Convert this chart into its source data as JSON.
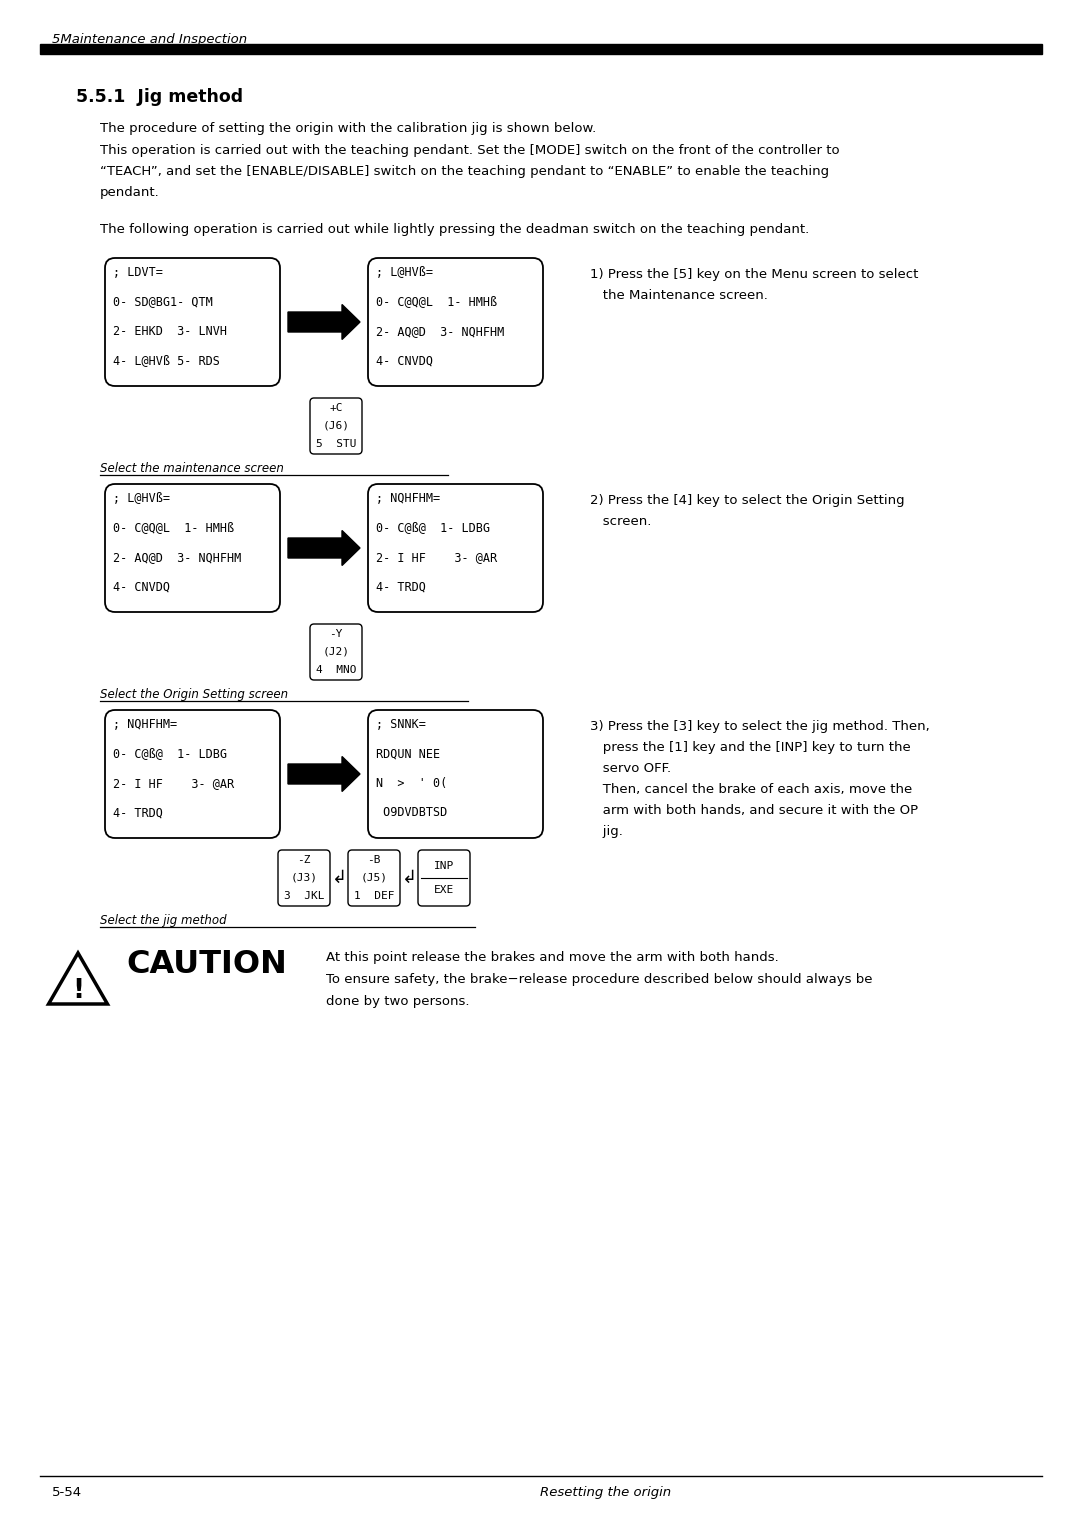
{
  "page_title": "5Maintenance and Inspection",
  "section_title": "5.5.1  Jig method",
  "para1": "The procedure of setting the origin with the calibration jig is shown below.",
  "para2a": "This operation is carried out with the teaching pendant. Set the [MODE] switch on the front of the controller to",
  "para2b": "“TEACH”, and set the [ENABLE/DISABLE] switch on the teaching pendant to “ENABLE” to enable the teaching",
  "para2c": "pendant.",
  "para3": "The following operation is carried out while lightly pressing the deadman switch on the teaching pendant.",
  "footer_left": "5-54",
  "footer_right": "Resetting the origin",
  "box1_lines": [
    "; LDVT=",
    "0- SD@BG1- QTM",
    "2- EHKD  3- LNVH",
    "4- L@HVß 5- RDS"
  ],
  "box2_lines": [
    "; L@HVß=",
    "0- C@Q@L  1- HMHß",
    "2- AQ@D  3- NQHFHM",
    "4- CNVDQ"
  ],
  "box3_lines": [
    "; L@HVß=",
    "0- C@Q@L  1- HMHß",
    "2- AQ@D  3- NQHFHM",
    "4- CNVDQ"
  ],
  "box4_lines": [
    "; NQHFHM=",
    "0- C@ß@  1- LDBG",
    "2- I HF    3- @AR",
    "4- TRDQ"
  ],
  "box5_lines": [
    "; NQHFHM=",
    "0- C@ß@  1- LDBG",
    "2- I HF    3- @AR",
    "4- TRDQ"
  ],
  "box6_lines": [
    "; SNNK=",
    "RDQUN NEE",
    "N  >  ' 0(",
    " O9DVDBTSD"
  ],
  "key_box1": [
    "+C",
    "(J6)",
    "5  STU"
  ],
  "key_box2": [
    "-Y",
    "(J2)",
    "4  MNO"
  ],
  "key_box3a": [
    "-Z",
    "(J3)",
    "3  JKL"
  ],
  "key_box3b": [
    "-B",
    "(J5)",
    "1  DEF"
  ],
  "label1": "Select the maintenance screen",
  "label2": "Select the Origin Setting screen",
  "label3": "Select the jig method",
  "step1_lines": [
    "1) Press the [5] key on the Menu screen to select",
    "   the Maintenance screen."
  ],
  "step2_lines": [
    "2) Press the [4] key to select the Origin Setting",
    "   screen."
  ],
  "step3_lines": [
    "3) Press the [3] key to select the jig method. Then,",
    "   press the [1] key and the [INP] key to turn the",
    "   servo OFF.",
    "   Then, cancel the brake of each axis, move the",
    "   arm with both hands, and secure it with the OP",
    "   jig."
  ],
  "caution_title": "CAUTION",
  "caution_text1": "At this point release the brakes and move the arm with both hands.",
  "caution_text2a": "To ensure safety, the brake−release procedure described below should always be",
  "caution_text2b": "done by two persons.",
  "bg_color": "#ffffff",
  "text_color": "#000000"
}
